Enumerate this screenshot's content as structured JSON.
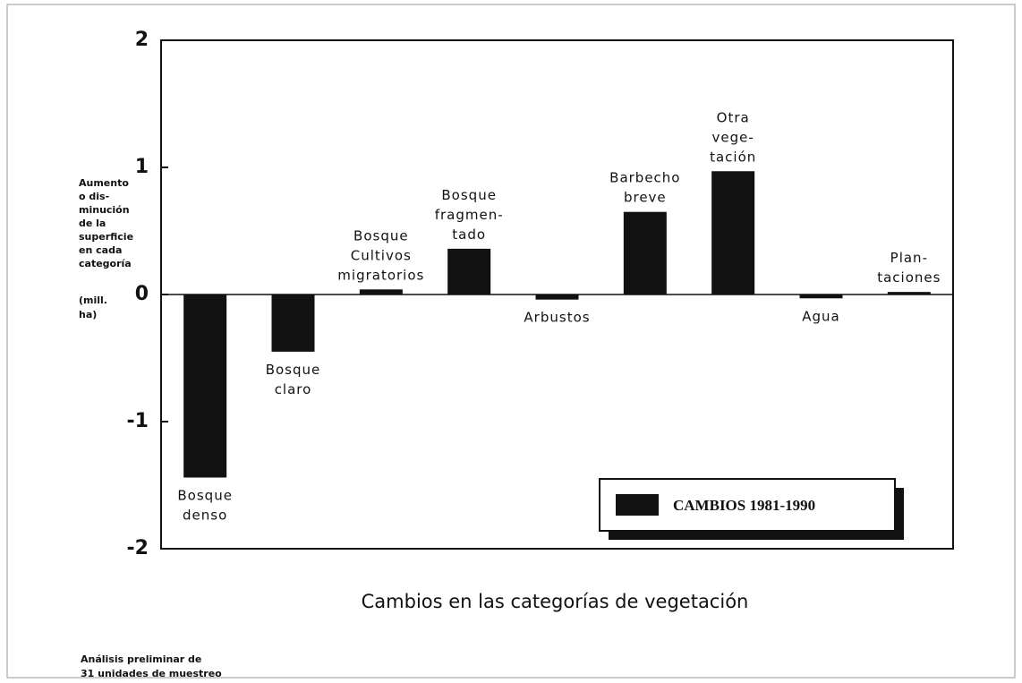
{
  "chart_data": {
    "type": "bar",
    "categories": [
      "Bosque\ndenso",
      "Bosque\nclaro",
      "Bosque\nCultivos\nmigratorios",
      "Bosque\nfragmen-\ntado",
      "Arbustos",
      "Barbecho\nbreve",
      "Otra\nvege-\ntación",
      "Agua",
      "Plan-\ntaciones"
    ],
    "series": [
      {
        "name": "CAMBIOS 1981-1990",
        "color": "#111111",
        "values": [
          -1.44,
          -0.45,
          0.04,
          0.36,
          -0.04,
          0.65,
          0.97,
          -0.03,
          0.02
        ]
      }
    ],
    "ylim": [
      -2,
      2
    ],
    "yticks": [
      2,
      1,
      0,
      -1,
      -2
    ],
    "y_label": [
      "Aumento",
      "o dis-",
      "minución",
      "de la",
      "superficie",
      "en cada",
      "categoría"
    ],
    "y_unit": [
      "(mill.",
      "ha)"
    ],
    "x_label": "Cambios en las categorías de vegetación",
    "annotation": [
      "Análisis preliminar de",
      "31 unidades de muestreo"
    ]
  }
}
